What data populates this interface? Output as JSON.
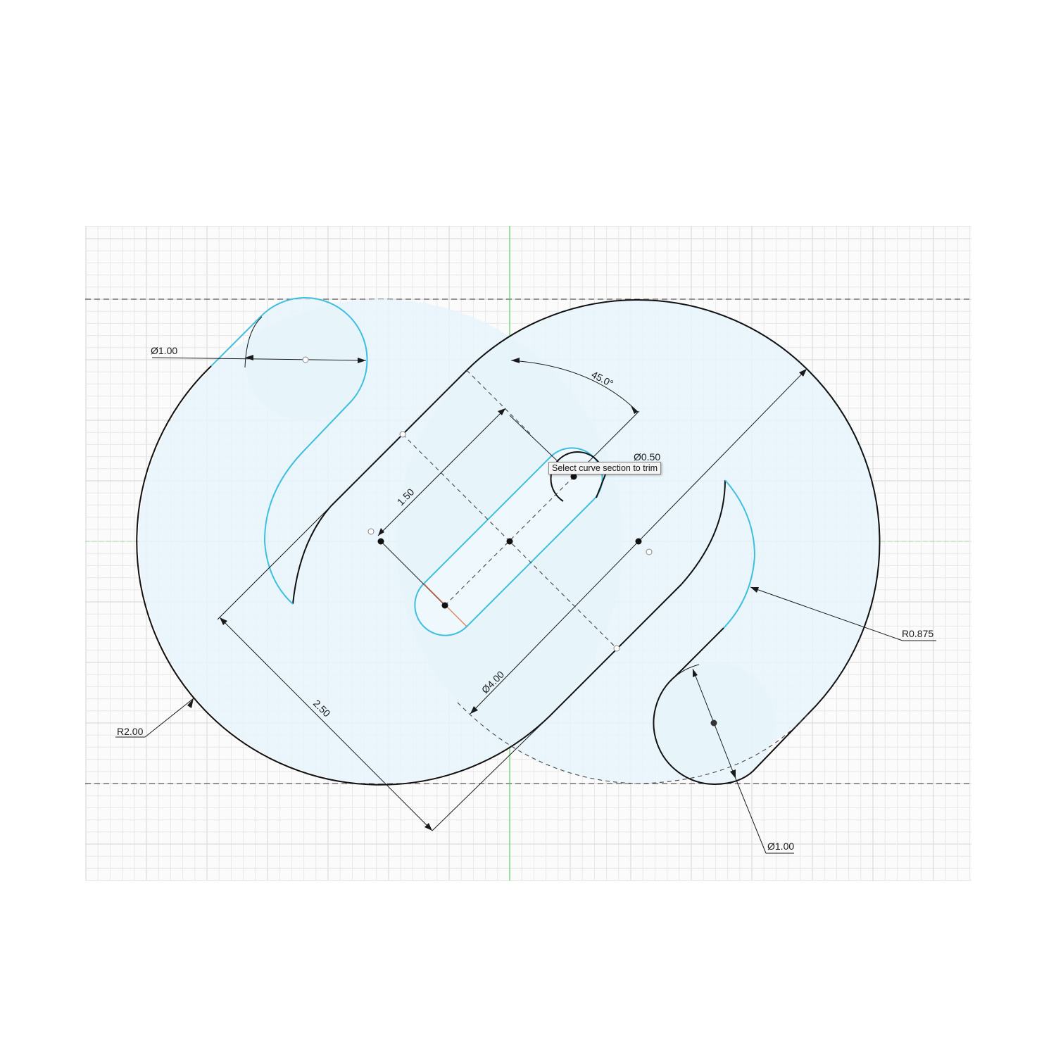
{
  "dimensions": {
    "dia_top_left": "Ø1.00",
    "dia_bottom_right": "Ø1.00",
    "radius_large": "R2.00",
    "radius_cutout": "R0.875",
    "angle": "45.0°",
    "dia_small_hole": "Ø0.50",
    "dia_main": "Ø4.00",
    "length_slot": "1.50",
    "length_body": "2.50"
  },
  "tooltip": {
    "text": "Select curve section to trim"
  },
  "colors": {
    "fill": "#e6f5fa",
    "profile": "#111111",
    "selected": "#3fbfdf",
    "axis_green": "#5fcf5f",
    "grid_minor": "#e8e8e8",
    "grid_major": "#d6d6d6"
  }
}
